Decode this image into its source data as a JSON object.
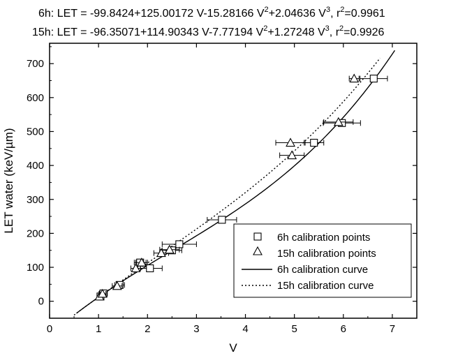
{
  "chart_data": {
    "type": "scatter",
    "title": "",
    "equations": [
      {
        "pre": "6h: LET = -99.8424+125.00172 V-15.28166 V",
        "mid": "+2.04636 V",
        "post": ",  r",
        "r2": "=0.9961"
      },
      {
        "pre": "15h: LET = -96.35071+114.90343 V-7.77194 V",
        "mid": "+1.27248 V",
        "post": ",  r",
        "r2": "=0.9926"
      }
    ],
    "superscripts": {
      "two": "2",
      "three": "3"
    },
    "xlabel": "V",
    "ylabel": "LET water (keV/µm)",
    "xlim": [
      0,
      7.5
    ],
    "ylim": [
      -50,
      760
    ],
    "xticks": [
      0,
      1,
      2,
      3,
      4,
      5,
      6,
      7
    ],
    "yticks": [
      0,
      100,
      200,
      300,
      400,
      500,
      600,
      700
    ],
    "grid": false,
    "legend_position": "bottom-right",
    "series": [
      {
        "name": "6h calibration points",
        "marker": "square",
        "points": [
          {
            "x": 1.04,
            "y": 14,
            "xerr": 0.06
          },
          {
            "x": 1.1,
            "y": 23,
            "xerr": 0.08
          },
          {
            "x": 1.43,
            "y": 48,
            "xerr": 0.1
          },
          {
            "x": 1.85,
            "y": 114,
            "xerr": 0.12
          },
          {
            "x": 2.05,
            "y": 97,
            "xerr": 0.25
          },
          {
            "x": 2.5,
            "y": 150,
            "xerr": 0.2
          },
          {
            "x": 2.65,
            "y": 168,
            "xerr": 0.35
          },
          {
            "x": 3.52,
            "y": 240,
            "xerr": 0.3
          },
          {
            "x": 5.4,
            "y": 467,
            "xerr": 0.2
          },
          {
            "x": 5.97,
            "y": 525,
            "xerr": 0.38
          },
          {
            "x": 6.62,
            "y": 656,
            "xerr": 0.28
          }
        ]
      },
      {
        "name": "15h calibration points",
        "marker": "triangle",
        "points": [
          {
            "x": 1.02,
            "y": 14,
            "xerr": 0.05
          },
          {
            "x": 1.08,
            "y": 22,
            "xerr": 0.07
          },
          {
            "x": 1.38,
            "y": 45,
            "xerr": 0.1
          },
          {
            "x": 1.76,
            "y": 97,
            "xerr": 0.1
          },
          {
            "x": 1.88,
            "y": 114,
            "xerr": 0.12
          },
          {
            "x": 2.28,
            "y": 142,
            "xerr": 0.15
          },
          {
            "x": 2.45,
            "y": 152,
            "xerr": 0.2
          },
          {
            "x": 4.92,
            "y": 467,
            "xerr": 0.3
          },
          {
            "x": 4.95,
            "y": 430,
            "xerr": 0.25
          },
          {
            "x": 5.9,
            "y": 528,
            "xerr": 0.3
          },
          {
            "x": 6.22,
            "y": 656,
            "xerr": 0.1
          }
        ]
      },
      {
        "name": "6h calibration curve",
        "line": "solid",
        "coefficients": [
          -99.8424,
          125.00172,
          -15.28166,
          2.04636
        ],
        "x_range": [
          0.55,
          7.05
        ]
      },
      {
        "name": "15h calibration curve",
        "line": "dotted",
        "coefficients": [
          -96.35071,
          114.90343,
          -7.77194,
          1.27248
        ],
        "x_range": [
          0.5,
          6.75
        ]
      }
    ]
  }
}
